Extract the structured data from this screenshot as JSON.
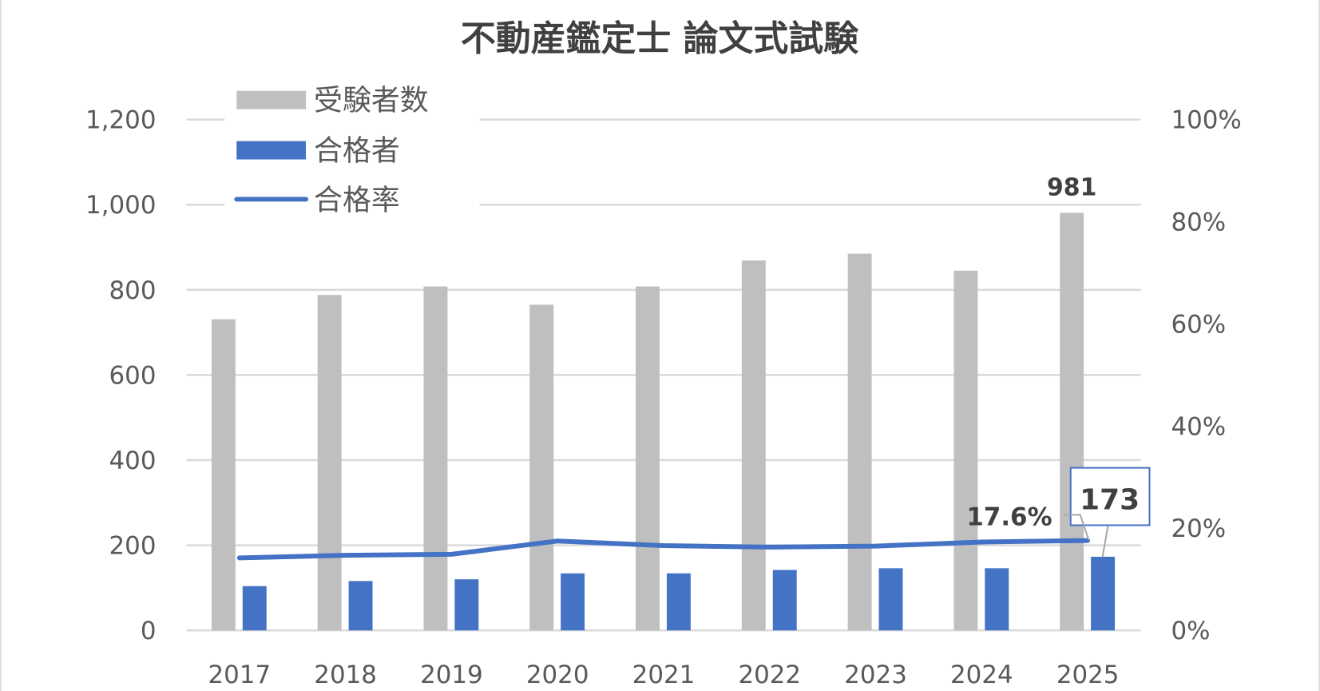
{
  "chart_data": {
    "type": "bar",
    "title": "不動産鑑定士 論文式試験",
    "categories": [
      "2017",
      "2018",
      "2019",
      "2020",
      "2021",
      "2022",
      "2023",
      "2024",
      "2025"
    ],
    "series": [
      {
        "name": "受験者数",
        "type": "bar",
        "axis": "left",
        "color": "#bfbfbf",
        "values": [
          731,
          788,
          808,
          765,
          808,
          869,
          885,
          845,
          981
        ]
      },
      {
        "name": "合格者",
        "type": "bar",
        "axis": "left",
        "color": "#4472c4",
        "values": [
          104,
          116,
          120,
          134,
          134,
          142,
          146,
          146,
          173
        ]
      },
      {
        "name": "合格率",
        "type": "line",
        "axis": "right",
        "color": "#4472c4",
        "values": [
          14.2,
          14.7,
          14.9,
          17.5,
          16.6,
          16.3,
          16.5,
          17.3,
          17.6
        ]
      }
    ],
    "y_left": {
      "range": [
        0,
        1200
      ],
      "ticks": [
        "0",
        "200",
        "400",
        "600",
        "800",
        "1,000",
        "1,200"
      ]
    },
    "y_right": {
      "range": [
        0,
        100
      ],
      "ticks": [
        "0%",
        "20%",
        "40%",
        "60%",
        "80%",
        "100%"
      ]
    },
    "data_labels": [
      {
        "series": "受験者数",
        "category": "2025",
        "text": "981"
      },
      {
        "series": "合格者",
        "category": "2025",
        "text": "173"
      },
      {
        "series": "合格率",
        "category": "2025",
        "text": "17.6%"
      }
    ],
    "grid": true,
    "legend": "top-left"
  }
}
